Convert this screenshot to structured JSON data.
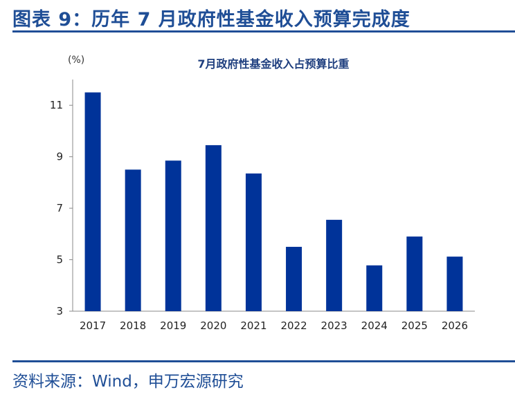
{
  "figure": {
    "title": "图表 9：历年 7 月政府性基金收入预算完成度",
    "source": "资料来源：Wind，申万宏源研究"
  },
  "colors": {
    "accent": "#1f4e96",
    "bar": "#003399"
  },
  "chart_data": {
    "type": "bar",
    "title": "7月政府性基金收入占预算比重",
    "unit_label": "(%)",
    "categories": [
      "2017",
      "2018",
      "2019",
      "2020",
      "2021",
      "2022",
      "2023",
      "2024",
      "2025",
      "2026"
    ],
    "values": [
      11.5,
      8.5,
      8.85,
      9.45,
      8.35,
      5.5,
      6.55,
      4.78,
      5.9,
      5.12
    ],
    "ylim": [
      3,
      12
    ],
    "yticks": [
      3,
      5,
      7,
      9,
      11
    ],
    "grid": false,
    "legend": "none"
  }
}
